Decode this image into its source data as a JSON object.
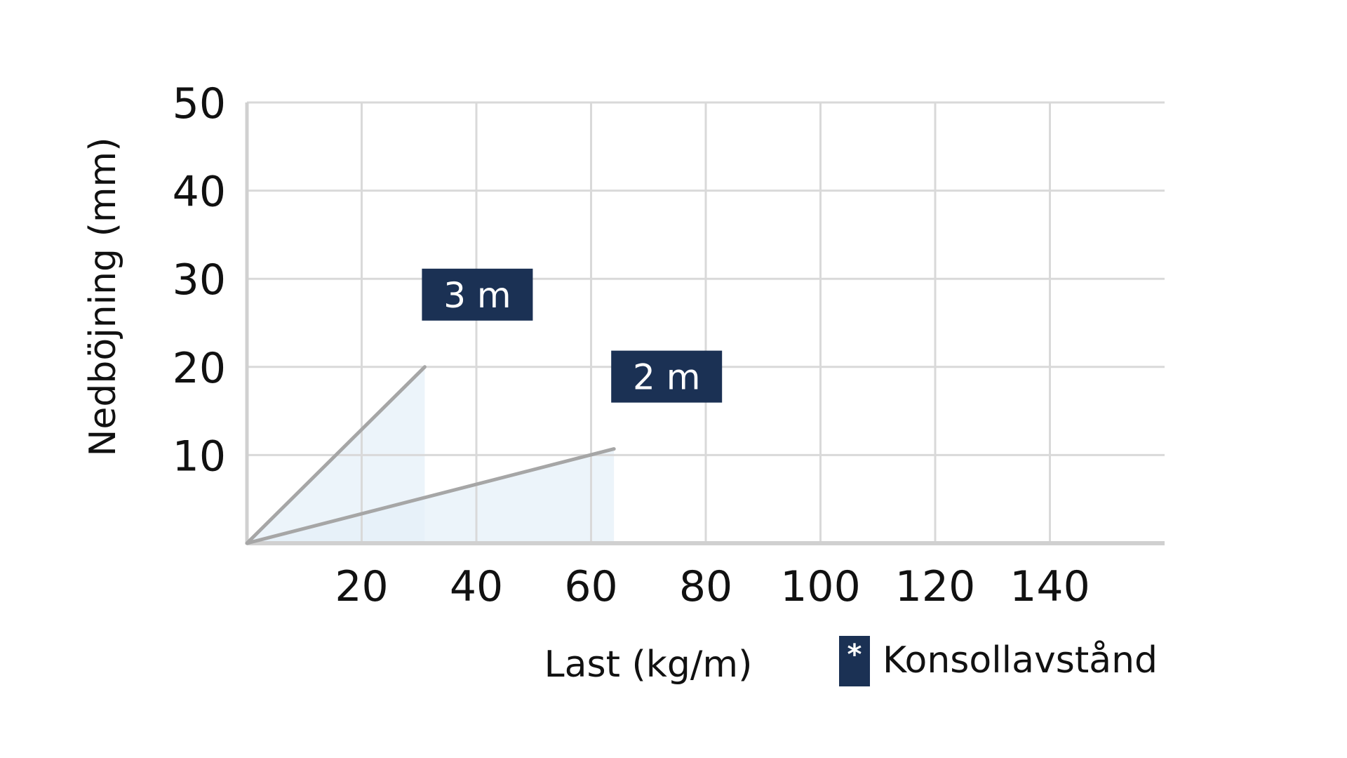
{
  "chart_data": {
    "type": "line",
    "xlabel": "Last (kg/m)",
    "ylabel": "Nedböjning (mm)",
    "xlim": [
      0,
      160
    ],
    "ylim": [
      0,
      50
    ],
    "x_ticks": [
      20,
      40,
      60,
      80,
      100,
      120,
      140
    ],
    "y_ticks": [
      10,
      20,
      30,
      40,
      50
    ],
    "grid": true,
    "series": [
      {
        "name": "3 m",
        "points": [
          [
            0,
            0
          ],
          [
            31,
            20
          ]
        ],
        "label_box": "3 m"
      },
      {
        "name": "2 m",
        "points": [
          [
            0,
            0
          ],
          [
            64,
            10.7
          ]
        ],
        "label_box": "2 m"
      }
    ],
    "legend": {
      "symbol": "*",
      "text": "Konsollavstånd",
      "placement": "bottom-right"
    },
    "colors": {
      "accent": "#1b3154",
      "line": "#a6a6a6",
      "fill": "#e6f0f8",
      "grid": "#d9d9d9",
      "axis": "#d0d0d0"
    }
  }
}
